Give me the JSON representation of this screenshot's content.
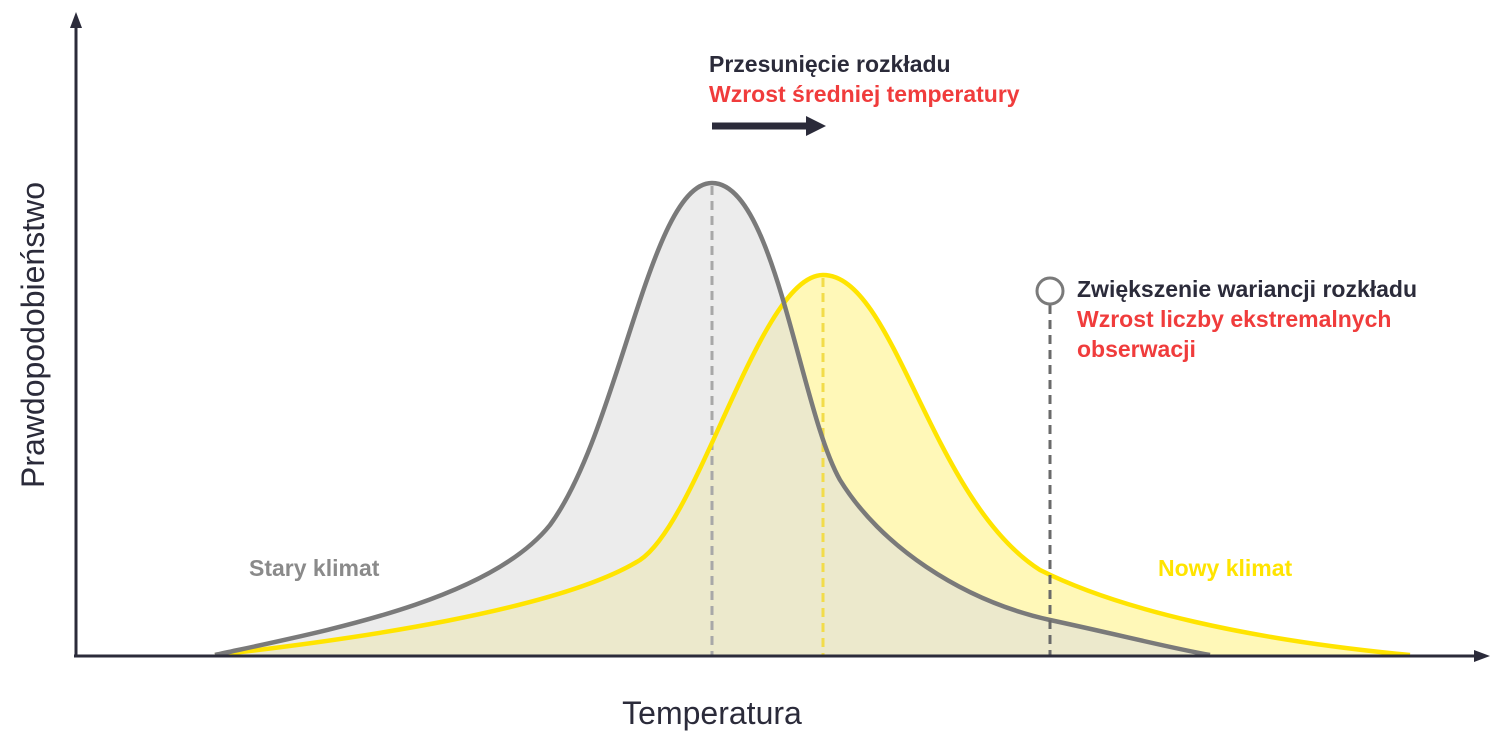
{
  "axes": {
    "x_label": "Temperatura",
    "y_label": "Prawdopodobieństwo"
  },
  "annotations": {
    "shift_title": "Przesunięcie rozkładu",
    "shift_subtitle": "Wzrost średniej temperatury",
    "variance_title": "Zwiększenie wariancji rozkładu",
    "variance_subtitle_line1": "Wzrost liczby ekstremalnych",
    "variance_subtitle_line2": "obserwacji"
  },
  "curves": {
    "old_climate": {
      "label": "Stary klimat",
      "color": "#7a7a7a",
      "fill": "#e6e6e6"
    },
    "new_climate": {
      "label": "Nowy klimat",
      "color": "#ffe400",
      "fill": "#fff7b0"
    }
  },
  "colors": {
    "axis": "#2b2b3a",
    "title_text": "#2b2b3a",
    "highlight_text": "#f03c3c",
    "old_mean_line": "#a8a8a8",
    "new_mean_line": "#f2dc4a",
    "marker_line": "#6a6a6a"
  }
}
